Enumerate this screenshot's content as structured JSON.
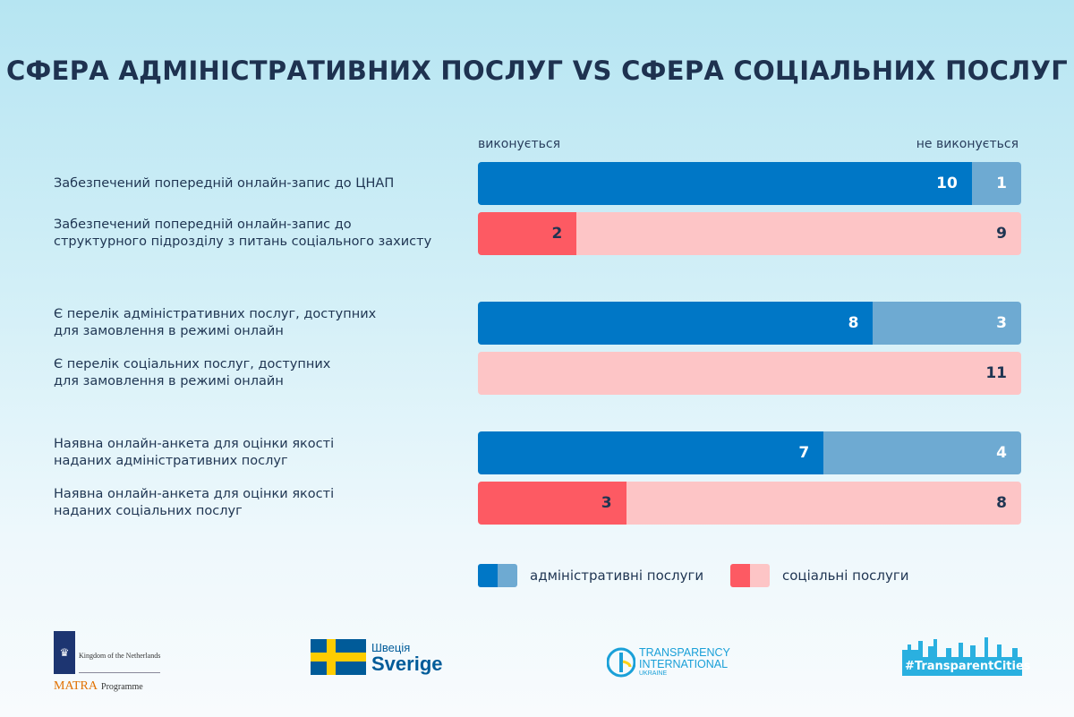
{
  "title": "СФЕРА АДМІНІСТРАТИВНИХ ПОСЛУГ VS СФЕРА СОЦІАЛЬНИХ ПОСЛУГ",
  "chart_data": {
    "type": "bar",
    "orientation": "horizontal-stacked",
    "title": "СФЕРА АДМІНІСТРАТИВНИХ ПОСЛУГ VS СФЕРА СОЦІАЛЬНИХ ПОСЛУГ",
    "column_headers": {
      "done": "виконується",
      "not_done": "не виконується"
    },
    "xlim": [
      0,
      11
    ],
    "categories": [
      "Забезпечений попередній онлайн-запис до ЦНАП",
      "Забезпечений попередній онлайн-запис до структурного підрозділу з питань соціального захисту",
      "Є перелік адміністративних послуг, доступних для замовлення в режимі онлайн",
      "Є перелік соціальних послуг, доступних для замовлення в режимі онлайн",
      "Наявна онлайн-анкета для оцінки якості наданих адміністративних послуг",
      "Наявна онлайн-анкета для оцінки якості наданих соціальних послуг"
    ],
    "groups": [
      "admin",
      "social",
      "admin",
      "social",
      "admin",
      "social"
    ],
    "series": [
      {
        "name": "виконується",
        "values": [
          10,
          2,
          8,
          0,
          7,
          3
        ]
      },
      {
        "name": "не виконується",
        "values": [
          1,
          9,
          3,
          11,
          4,
          8
        ]
      }
    ],
    "legend": [
      {
        "name": "адміністративні послуги",
        "colors": [
          "#0077c6",
          "#6eaad2"
        ]
      },
      {
        "name": "соціальні послуги",
        "colors": [
          "#fd5a63",
          "#fdc5c6"
        ]
      }
    ],
    "legend_placement": "bottom-right",
    "grid": false
  },
  "labels": [
    [
      "Забезпечений попередній онлайн-запис до ЦНАП"
    ],
    [
      "Забезпечений попередній онлайн-запис до",
      "структурного підрозділу з питань соціального захисту"
    ],
    [
      "Є перелік адміністративних послуг, доступних",
      "для замовлення в режимі онлайн"
    ],
    [
      "Є перелік соціальних послуг, доступних",
      "для замовлення в режимі онлайн"
    ],
    [
      "Наявна онлайн-анкета для оцінки якості",
      "наданих адміністративних послуг"
    ],
    [
      "Наявна онлайн-анкета для оцінки якості",
      "наданих соціальних послуг"
    ]
  ],
  "logos": {
    "netherlands": {
      "line1": "Kingdom of the Netherlands",
      "matra": "MATRA",
      "programme": "Programme"
    },
    "sweden": {
      "line1": "Швеція",
      "line2": "Sverige"
    },
    "ti": {
      "line1": "TRANSPARENCY",
      "line2": "INTERNATIONAL",
      "line3": "UKRAINE"
    },
    "cities": {
      "text": "#TransparentCities"
    }
  }
}
